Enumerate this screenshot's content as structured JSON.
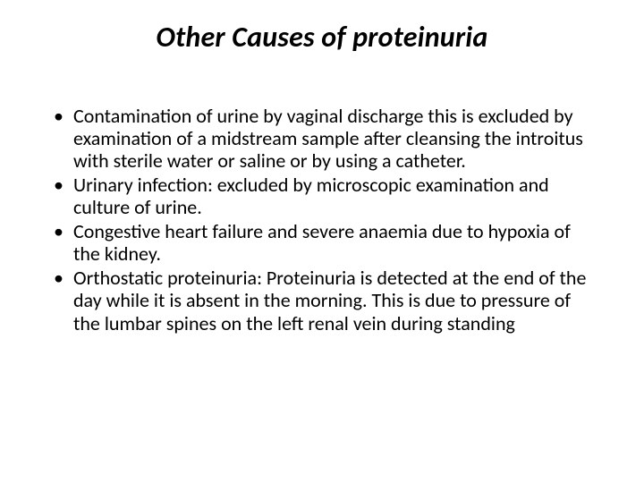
{
  "slide": {
    "title": "Other Causes of proteinuria",
    "bullets": [
      "Contamination of urine by vaginal discharge this is excluded by examination of a midstream sample after cleansing the introitus with sterile water or saline or by using a catheter.",
      "Urinary infection: excluded by microscopic examination and culture of urine.",
      "Congestive heart failure and severe anaemia due to hypoxia of the kidney.",
      "Orthostatic proteinuria: Proteinuria is detected at the end of the day while it is absent in the morning. This is due to pressure of the lumbar spines on the left renal vein during standing"
    ]
  },
  "style": {
    "background_color": "#ffffff",
    "text_color": "#000000",
    "title_fontsize": 32,
    "title_weight": 700,
    "title_style": "italic",
    "body_fontsize": 22,
    "body_line_height": 1.14,
    "font_family": "Calibri"
  }
}
